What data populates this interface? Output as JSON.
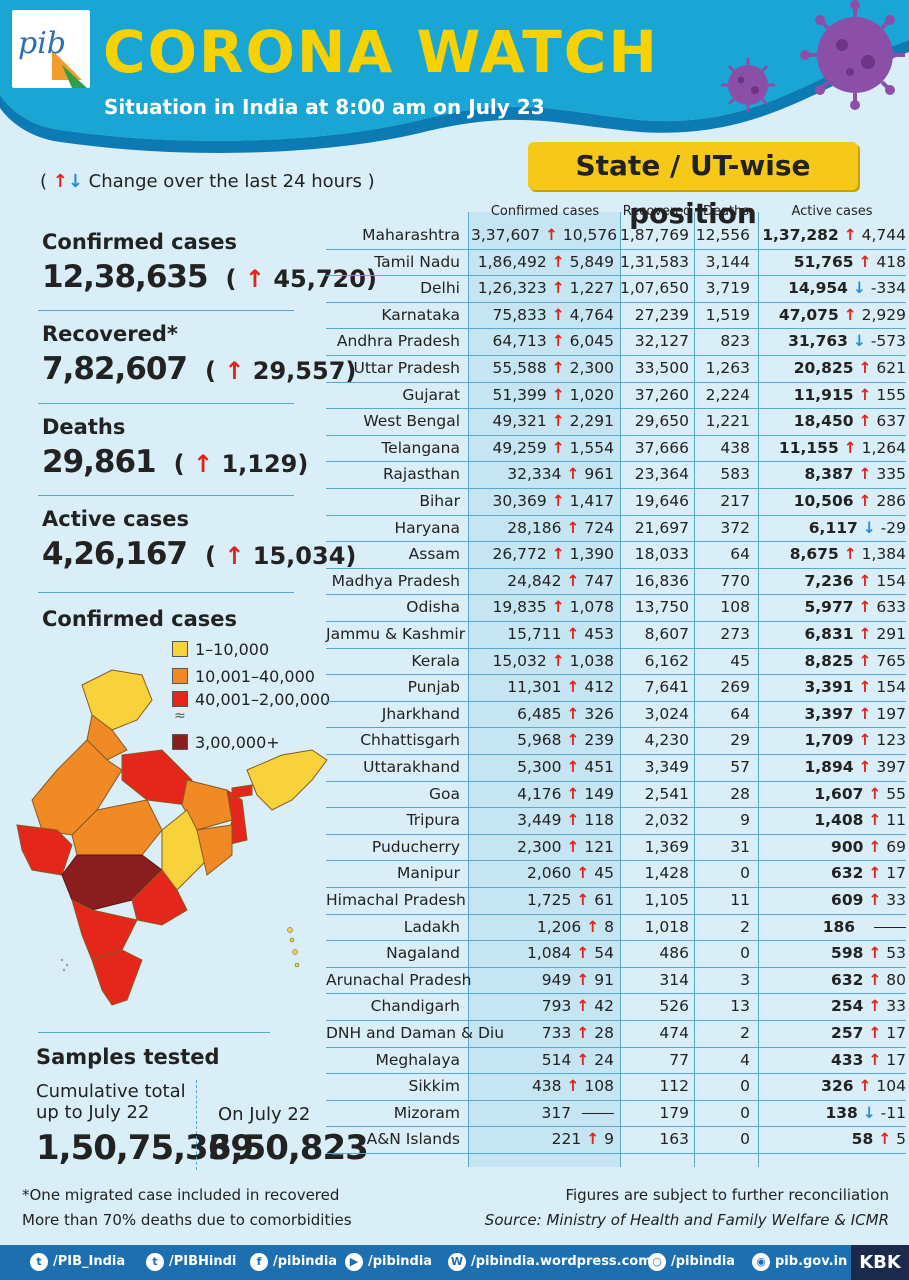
{
  "header": {
    "logo_text": "pib",
    "title": "CORONA WATCH",
    "subtitle": "Situation in India at 8:00 am on July 23"
  },
  "badge": "State / UT-wise position",
  "change_note": "Change over the last 24 hours",
  "summary": {
    "confirmed": {
      "label": "Confirmed cases",
      "value": "12,38,635",
      "change": "45,720"
    },
    "recovered": {
      "label": "Recovered*",
      "value": "7,82,607",
      "change": "29,557"
    },
    "deaths": {
      "label": "Deaths",
      "value": "29,861",
      "change": "1,129"
    },
    "active": {
      "label": "Active cases",
      "value": "4,26,167",
      "change": "15,034"
    }
  },
  "map": {
    "title": "Confirmed cases",
    "legend": [
      {
        "label": "1–10,000",
        "color": "#f7d23a"
      },
      {
        "label": "10,001–40,000",
        "color": "#f08a24"
      },
      {
        "label": "40,001–2,00,000",
        "color": "#e4261b"
      },
      {
        "label": "3,00,000+",
        "color": "#8a1e1e"
      }
    ]
  },
  "samples": {
    "title": "Samples tested",
    "cumulative_label": "Cumulative total up to July 22",
    "cumulative_value": "1,50,75,369",
    "day_label": "On July 22",
    "day_value": "3,50,823"
  },
  "table": {
    "headers": {
      "confirmed": "Confirmed cases",
      "recovered": "Recovered",
      "deaths": "Deaths",
      "active": "Active cases"
    },
    "rows": [
      {
        "state": "Maharashtra",
        "confirmed": "3,37,607",
        "conf_chg": "10,576",
        "recovered": "1,87,769",
        "deaths": "12,556",
        "active": "1,37,282",
        "act_dir": "up",
        "act_chg": "4,744"
      },
      {
        "state": "Tamil Nadu",
        "confirmed": "1,86,492",
        "conf_chg": "5,849",
        "recovered": "1,31,583",
        "deaths": "3,144",
        "active": "51,765",
        "act_dir": "up",
        "act_chg": "418"
      },
      {
        "state": "Delhi",
        "confirmed": "1,26,323",
        "conf_chg": "1,227",
        "recovered": "1,07,650",
        "deaths": "3,719",
        "active": "14,954",
        "act_dir": "down",
        "act_chg": "-334"
      },
      {
        "state": "Karnataka",
        "confirmed": "75,833",
        "conf_chg": "4,764",
        "recovered": "27,239",
        "deaths": "1,519",
        "active": "47,075",
        "act_dir": "up",
        "act_chg": "2,929"
      },
      {
        "state": "Andhra Pradesh",
        "confirmed": "64,713",
        "conf_chg": "6,045",
        "recovered": "32,127",
        "deaths": "823",
        "active": "31,763",
        "act_dir": "down",
        "act_chg": "-573"
      },
      {
        "state": "Uttar Pradesh",
        "confirmed": "55,588",
        "conf_chg": "2,300",
        "recovered": "33,500",
        "deaths": "1,263",
        "active": "20,825",
        "act_dir": "up",
        "act_chg": "621"
      },
      {
        "state": "Gujarat",
        "confirmed": "51,399",
        "conf_chg": "1,020",
        "recovered": "37,260",
        "deaths": "2,224",
        "active": "11,915",
        "act_dir": "up",
        "act_chg": "155"
      },
      {
        "state": "West Bengal",
        "confirmed": "49,321",
        "conf_chg": "2,291",
        "recovered": "29,650",
        "deaths": "1,221",
        "active": "18,450",
        "act_dir": "up",
        "act_chg": "637"
      },
      {
        "state": "Telangana",
        "confirmed": "49,259",
        "conf_chg": "1,554",
        "recovered": "37,666",
        "deaths": "438",
        "active": "11,155",
        "act_dir": "up",
        "act_chg": "1,264"
      },
      {
        "state": "Rajasthan",
        "confirmed": "32,334",
        "conf_chg": "961",
        "recovered": "23,364",
        "deaths": "583",
        "active": "8,387",
        "act_dir": "up",
        "act_chg": "335"
      },
      {
        "state": "Bihar",
        "confirmed": "30,369",
        "conf_chg": "1,417",
        "recovered": "19,646",
        "deaths": "217",
        "active": "10,506",
        "act_dir": "up",
        "act_chg": "286"
      },
      {
        "state": "Haryana",
        "confirmed": "28,186",
        "conf_chg": "724",
        "recovered": "21,697",
        "deaths": "372",
        "active": "6,117",
        "act_dir": "down",
        "act_chg": "-29"
      },
      {
        "state": "Assam",
        "confirmed": "26,772",
        "conf_chg": "1,390",
        "recovered": "18,033",
        "deaths": "64",
        "active": "8,675",
        "act_dir": "up",
        "act_chg": "1,384"
      },
      {
        "state": "Madhya Pradesh",
        "confirmed": "24,842",
        "conf_chg": "747",
        "recovered": "16,836",
        "deaths": "770",
        "active": "7,236",
        "act_dir": "up",
        "act_chg": "154"
      },
      {
        "state": "Odisha",
        "confirmed": "19,835",
        "conf_chg": "1,078",
        "recovered": "13,750",
        "deaths": "108",
        "active": "5,977",
        "act_dir": "up",
        "act_chg": "633"
      },
      {
        "state": "Jammu & Kashmir",
        "confirmed": "15,711",
        "conf_chg": "453",
        "recovered": "8,607",
        "deaths": "273",
        "active": "6,831",
        "act_dir": "up",
        "act_chg": "291"
      },
      {
        "state": "Kerala",
        "confirmed": "15,032",
        "conf_chg": "1,038",
        "recovered": "6,162",
        "deaths": "45",
        "active": "8,825",
        "act_dir": "up",
        "act_chg": "765"
      },
      {
        "state": "Punjab",
        "confirmed": "11,301",
        "conf_chg": "412",
        "recovered": "7,641",
        "deaths": "269",
        "active": "3,391",
        "act_dir": "up",
        "act_chg": "154"
      },
      {
        "state": "Jharkhand",
        "confirmed": "6,485",
        "conf_chg": "326",
        "recovered": "3,024",
        "deaths": "64",
        "active": "3,397",
        "act_dir": "up",
        "act_chg": "197"
      },
      {
        "state": "Chhattisgarh",
        "confirmed": "5,968",
        "conf_chg": "239",
        "recovered": "4,230",
        "deaths": "29",
        "active": "1,709",
        "act_dir": "up",
        "act_chg": "123"
      },
      {
        "state": "Uttarakhand",
        "confirmed": "5,300",
        "conf_chg": "451",
        "recovered": "3,349",
        "deaths": "57",
        "active": "1,894",
        "act_dir": "up",
        "act_chg": "397"
      },
      {
        "state": "Goa",
        "confirmed": "4,176",
        "conf_chg": "149",
        "recovered": "2,541",
        "deaths": "28",
        "active": "1,607",
        "act_dir": "up",
        "act_chg": "55"
      },
      {
        "state": "Tripura",
        "confirmed": "3,449",
        "conf_chg": "118",
        "recovered": "2,032",
        "deaths": "9",
        "active": "1,408",
        "act_dir": "up",
        "act_chg": "11"
      },
      {
        "state": "Puducherry",
        "confirmed": "2,300",
        "conf_chg": "121",
        "recovered": "1,369",
        "deaths": "31",
        "active": "900",
        "act_dir": "up",
        "act_chg": "69"
      },
      {
        "state": "Manipur",
        "confirmed": "2,060",
        "conf_chg": "45",
        "recovered": "1,428",
        "deaths": "0",
        "active": "632",
        "act_dir": "up",
        "act_chg": "17"
      },
      {
        "state": "Himachal Pradesh",
        "confirmed": "1,725",
        "conf_chg": "61",
        "recovered": "1,105",
        "deaths": "11",
        "active": "609",
        "act_dir": "up",
        "act_chg": "33"
      },
      {
        "state": "Ladakh",
        "confirmed": "1,206",
        "conf_chg": "8",
        "recovered": "1,018",
        "deaths": "2",
        "active": "186",
        "act_dir": "none",
        "act_chg": ""
      },
      {
        "state": "Nagaland",
        "confirmed": "1,084",
        "conf_chg": "54",
        "recovered": "486",
        "deaths": "0",
        "active": "598",
        "act_dir": "up",
        "act_chg": "53"
      },
      {
        "state": "Arunachal Pradesh",
        "confirmed": "949",
        "conf_chg": "91",
        "recovered": "314",
        "deaths": "3",
        "active": "632",
        "act_dir": "up",
        "act_chg": "80"
      },
      {
        "state": "Chandigarh",
        "confirmed": "793",
        "conf_chg": "42",
        "recovered": "526",
        "deaths": "13",
        "active": "254",
        "act_dir": "up",
        "act_chg": "33"
      },
      {
        "state": "DNH and Daman & Diu",
        "confirmed": "733",
        "conf_chg": "28",
        "recovered": "474",
        "deaths": "2",
        "active": "257",
        "act_dir": "up",
        "act_chg": "17"
      },
      {
        "state": "Meghalaya",
        "confirmed": "514",
        "conf_chg": "24",
        "recovered": "77",
        "deaths": "4",
        "active": "433",
        "act_dir": "up",
        "act_chg": "17"
      },
      {
        "state": "Sikkim",
        "confirmed": "438",
        "conf_chg": "108",
        "recovered": "112",
        "deaths": "0",
        "active": "326",
        "act_dir": "up",
        "act_chg": "104"
      },
      {
        "state": "Mizoram",
        "confirmed": "317",
        "conf_chg": "",
        "recovered": "179",
        "deaths": "0",
        "active": "138",
        "act_dir": "down",
        "act_chg": "-11"
      },
      {
        "state": "A&N Islands",
        "confirmed": "221",
        "conf_chg": "9",
        "recovered": "163",
        "deaths": "0",
        "active": "58",
        "act_dir": "up",
        "act_chg": "5"
      }
    ]
  },
  "footnotes": {
    "left1": "*One migrated case included in recovered",
    "left2": "More than 70% deaths due to comorbidities",
    "right1": "Figures are subject to further reconciliation",
    "right2": "Source: Ministry of Health and Family Welfare & ICMR"
  },
  "social": [
    {
      "icon": "twitter-icon",
      "label": "/PIB_India"
    },
    {
      "icon": "twitter-icon",
      "label": "/PIBHindi"
    },
    {
      "icon": "facebook-icon",
      "label": "/pibindia"
    },
    {
      "icon": "youtube-icon",
      "label": "/pibindia"
    },
    {
      "icon": "wordpress-icon",
      "label": "/pibindia.wordpress.com"
    },
    {
      "icon": "instagram-icon",
      "label": "/pibindia"
    },
    {
      "icon": "globe-icon",
      "label": "pib.gov.in"
    }
  ],
  "kbk": "KBK"
}
